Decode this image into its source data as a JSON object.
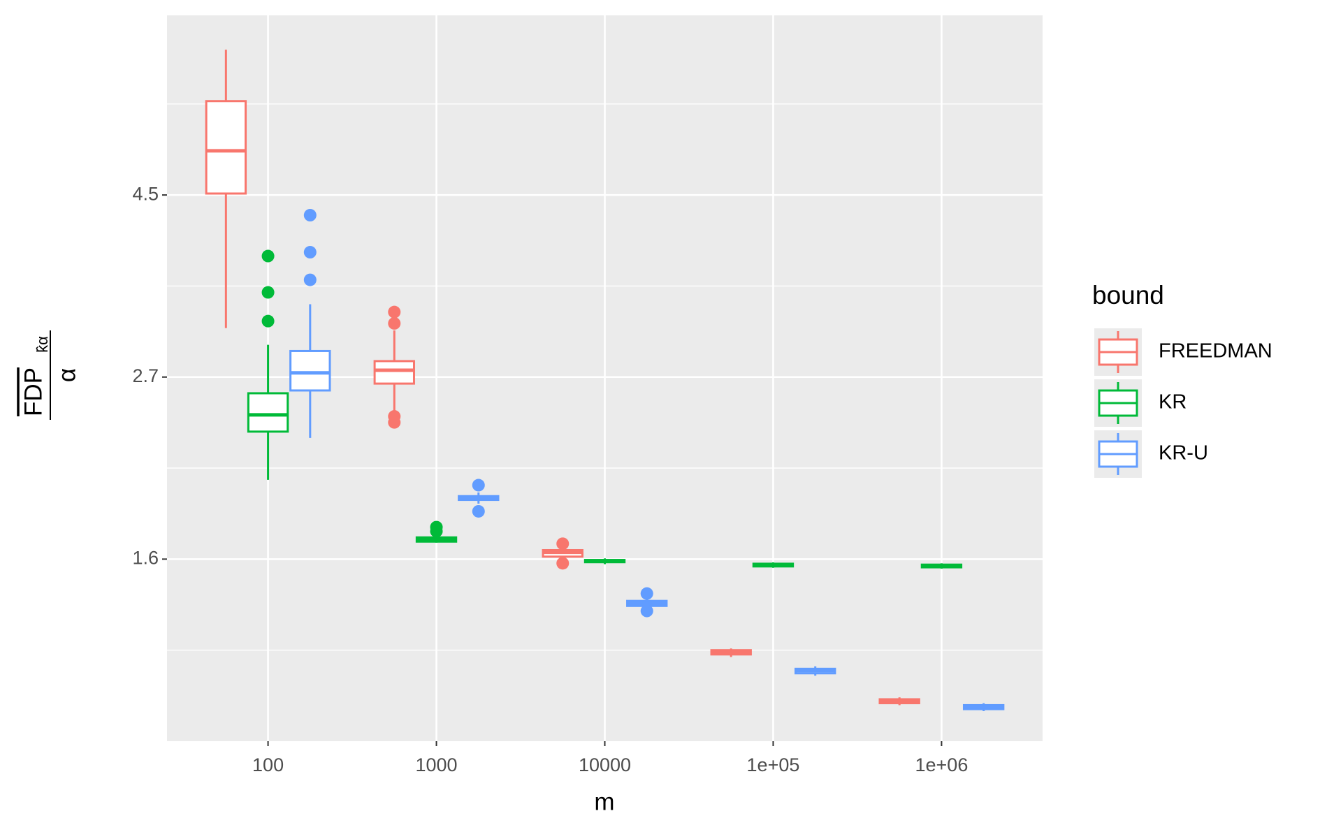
{
  "chart_data": {
    "type": "box",
    "xlabel": "m",
    "ylabel": {
      "numerator": "FDP",
      "subscript": "k̂α",
      "denominator": "α"
    },
    "legend_title": "bound",
    "legend": "right",
    "log_y": true,
    "grid": true,
    "categories": [
      "100",
      "1000",
      "10000",
      "1e+05",
      "1e+06"
    ],
    "ylim": [
      1.0,
      7.34
    ],
    "yticks": [
      {
        "value": 1.6487,
        "label": "1.6"
      },
      {
        "value": 2.7183,
        "label": "2.7"
      },
      {
        "value": 4.4817,
        "label": "4.5"
      }
    ],
    "series": [
      {
        "name": "FREEDMAN",
        "color": "#F8766D",
        "boxes": [
          {
            "whislo": 3.11,
            "q1": 4.5,
            "med": 5.06,
            "q3": 5.8,
            "whishi": 6.68,
            "outliers": []
          },
          {
            "whislo": 2.46,
            "q1": 2.67,
            "med": 2.77,
            "q3": 2.84,
            "whishi": 3.09,
            "outliers": [
              3.25,
              3.15,
              2.44,
              2.4
            ]
          },
          {
            "whislo": 1.65,
            "q1": 1.66,
            "med": 1.68,
            "q3": 1.69,
            "whishi": 1.7,
            "outliers": [
              1.72,
              1.63
            ]
          },
          {
            "whislo": 1.26,
            "q1": 1.269,
            "med": 1.277,
            "q3": 1.284,
            "whishi": 1.29,
            "outliers": []
          },
          {
            "whislo": 1.104,
            "q1": 1.11,
            "med": 1.116,
            "q3": 1.122,
            "whishi": 1.128,
            "outliers": []
          }
        ]
      },
      {
        "name": "KR",
        "color": "#00BA38",
        "boxes": [
          {
            "whislo": 2.05,
            "q1": 2.34,
            "med": 2.45,
            "q3": 2.6,
            "whishi": 2.97,
            "outliers": [
              3.79,
              3.43,
              3.17
            ]
          },
          {
            "whislo": 1.725,
            "q1": 1.73,
            "med": 1.74,
            "q3": 1.75,
            "whishi": 1.755,
            "outliers": [
              1.8,
              1.78
            ]
          },
          {
            "whislo": 1.626,
            "q1": 1.635,
            "med": 1.64,
            "q3": 1.645,
            "whishi": 1.652,
            "outliers": []
          },
          {
            "whislo": 1.61,
            "q1": 1.616,
            "med": 1.622,
            "q3": 1.628,
            "whishi": 1.634,
            "outliers": []
          },
          {
            "whislo": 1.606,
            "q1": 1.612,
            "med": 1.618,
            "q3": 1.624,
            "whishi": 1.63,
            "outliers": []
          }
        ]
      },
      {
        "name": "KR-U",
        "color": "#619CFF",
        "boxes": [
          {
            "whislo": 2.3,
            "q1": 2.62,
            "med": 2.75,
            "q3": 2.92,
            "whishi": 3.32,
            "outliers": [
              4.24,
              3.83,
              3.55
            ]
          },
          {
            "whislo": 1.92,
            "q1": 1.94,
            "med": 1.95,
            "q3": 1.96,
            "whishi": 1.98,
            "outliers": [
              2.02,
              1.88
            ]
          },
          {
            "whislo": 1.44,
            "q1": 1.45,
            "med": 1.46,
            "q3": 1.47,
            "whishi": 1.48,
            "outliers": [
              1.5,
              1.43
            ]
          },
          {
            "whislo": 1.197,
            "q1": 1.205,
            "med": 1.214,
            "q3": 1.22,
            "whishi": 1.228,
            "outliers": []
          },
          {
            "whislo": 1.086,
            "q1": 1.092,
            "med": 1.098,
            "q3": 1.104,
            "whishi": 1.11,
            "outliers": []
          }
        ]
      }
    ]
  }
}
